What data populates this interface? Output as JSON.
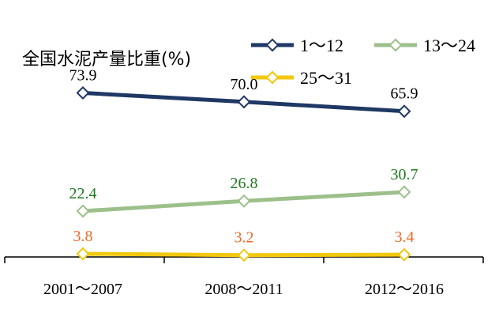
{
  "chart_data": {
    "type": "line",
    "title": "全国水泥产量比重(%)",
    "categories": [
      "2001～2007",
      "2008～2011",
      "2012～2016"
    ],
    "series": [
      {
        "name": "1～12",
        "values": [
          73.9,
          70.0,
          65.9
        ],
        "labels": [
          "73.9",
          "70.0",
          "65.9"
        ],
        "color": "#1F3864",
        "label_color": "#000000"
      },
      {
        "name": "13～24",
        "values": [
          22.4,
          26.8,
          30.7
        ],
        "labels": [
          "22.4",
          "26.8",
          "30.7"
        ],
        "color": "#9DC08B",
        "label_color": "#1E7B1E"
      },
      {
        "name": "25～31",
        "values": [
          3.8,
          3.2,
          3.4
        ],
        "labels": [
          "3.8",
          "3.2",
          "3.4"
        ],
        "color": "#F2C80F",
        "label_color": "#F06A2A"
      }
    ],
    "legend_position": "top-right",
    "grid": false,
    "ylim": [
      0,
      82
    ]
  }
}
